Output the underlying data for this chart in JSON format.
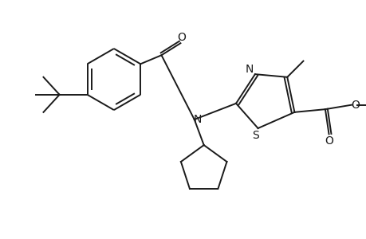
{
  "bg_color": "#ffffff",
  "line_color": "#1a1a1a",
  "lw": 1.4,
  "figure_size": [
    4.6,
    3.0
  ],
  "dpi": 100,
  "xlim": [
    -2.6,
    2.4
  ],
  "ylim": [
    -1.3,
    1.3
  ]
}
